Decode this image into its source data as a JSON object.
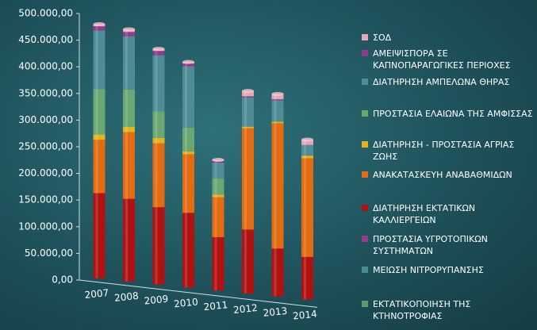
{
  "chart_data": {
    "type": "bar",
    "categories": [
      "2007",
      "2008",
      "2009",
      "2010",
      "2011",
      "2012",
      "2013",
      "2014"
    ],
    "series": [
      {
        "name": "ΣΟΔ",
        "color": "#e8a5b4",
        "values": [
          4000,
          5000,
          4000,
          3000,
          2000,
          10000,
          10000,
          10000
        ]
      },
      {
        "name": "ΑΜΕΙΨΙΣΠΟΡΑ ΣΕ ΚΑΠΝΟΠΑΡΑΓΩΓΙΚΕΣ ΠΕΡΙΟΧΕΣ",
        "color": "#8e3a8e",
        "values": [
          8000,
          8000,
          8000,
          5000,
          3000,
          2000,
          2000,
          0
        ]
      },
      {
        "name": "ΔΙΑΤΗΡΗΣΗ ΑΜΠΕΛΩΝΑ ΘΗΡΑΣ",
        "color": "#4f8c97",
        "values": [
          110000,
          100000,
          105000,
          115000,
          30000,
          55000,
          40000,
          20000
        ]
      },
      {
        "name": "ΠΡΟΣΤΑΣΙΑ ΕΛΑΙΩΝΑ ΤΗΣ ΑΜΦΙΣΣΑΣ",
        "color": "#6aa872",
        "values": [
          85000,
          70000,
          50000,
          45000,
          30000,
          0,
          0,
          0
        ]
      },
      {
        "name": "ΔΙΑΤΗΡΗΣΗ - ΠΡΟΣΤΑΣΙΑ ΑΓΡΙΑΣ ΖΩΗΣ",
        "color": "#e2b422",
        "values": [
          10000,
          10000,
          10000,
          5000,
          5000,
          3000,
          3000,
          5000
        ]
      },
      {
        "name": "ΑΝΑΚΑΤΑΣΚΕΥΗ ΑΝΑΒΑΘΜΙΔΩΝ",
        "color": "#e36c12",
        "values": [
          100000,
          125000,
          120000,
          110000,
          75000,
          190000,
          235000,
          185000
        ]
      },
      {
        "name": "ΔΙΑΤΗΡΗΣΗ ΕΚΤΑΤΙΚΩΝ ΚΑΛΛΙΕΡΓΕΙΩΝ",
        "color": "#b01212",
        "values": [
          160000,
          155000,
          145000,
          140000,
          100000,
          120000,
          90000,
          80000
        ]
      },
      {
        "name": "ΠΡΟΣΤΑΣΙΑ ΥΓΡΟΤΟΠΙΚΩΝ ΣΥΣΤΗΜΑΤΩΝ",
        "color": "#9a3a8c",
        "values": [
          0,
          0,
          0,
          0,
          0,
          0,
          0,
          0
        ]
      },
      {
        "name": "ΜΕΙΩΣΗ ΝΙΤΡΟΡΥΠΑΝΣΗΣ",
        "color": "#4a8a92",
        "values": [
          0,
          0,
          0,
          0,
          0,
          0,
          0,
          0
        ]
      },
      {
        "name": "ΕΚΤΑΤΙΚΟΠΟΙΗΣΗ ΤΗΣ ΚΤΗΝΟΤΡΟΦΙΑΣ",
        "color": "#5c9c6c",
        "values": [
          0,
          0,
          0,
          0,
          0,
          0,
          0,
          0
        ]
      }
    ],
    "stack_order": [
      6,
      5,
      4,
      3,
      2,
      1,
      0,
      7,
      8,
      9
    ],
    "ylim": [
      0,
      500000
    ],
    "yticks": [
      {
        "value": 0,
        "label": "0,00"
      },
      {
        "value": 50000,
        "label": "50.000,00"
      },
      {
        "value": 100000,
        "label": "100.000,00"
      },
      {
        "value": 150000,
        "label": "150.000,00"
      },
      {
        "value": 200000,
        "label": "200.000,00"
      },
      {
        "value": 250000,
        "label": "250.000,00"
      },
      {
        "value": 300000,
        "label": "300.000,00"
      },
      {
        "value": 350000,
        "label": "350.000,00"
      },
      {
        "value": 400000,
        "label": "400.000,00"
      },
      {
        "value": 450000,
        "label": "450.000,00"
      },
      {
        "value": 500000,
        "label": "500.000,00"
      }
    ],
    "grid": false,
    "legend": "right"
  }
}
